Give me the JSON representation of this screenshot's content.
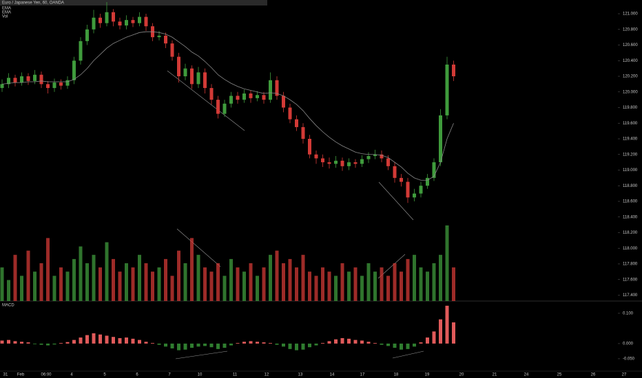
{
  "chart_data": {
    "type": "candlestick",
    "title": "Euro / Japanese Yen, 60, OANDA",
    "indicator_labels": [
      "EMA",
      "EMA",
      "Vol"
    ],
    "macd_label": "MACD",
    "up_color": "#3f9b3c",
    "down_color": "#d23a36",
    "ema_color": "#8a8a8a",
    "categories": [
      "31",
      "Feb",
      "06:00",
      "4",
      "5",
      "6",
      "7",
      "10",
      "11",
      "12",
      "13",
      "14",
      "17",
      "18",
      "19",
      "20",
      "21",
      "24",
      "25",
      "26",
      "27"
    ],
    "ylim": [
      117.325,
      121.176
    ],
    "yticks": [
      {
        "value": 121.0,
        "label": "121.000"
      },
      {
        "value": 120.8,
        "label": "120.800"
      },
      {
        "value": 120.6,
        "label": "120.600"
      },
      {
        "value": 120.4,
        "label": "120.400"
      },
      {
        "value": 120.2,
        "label": "120.200"
      },
      {
        "value": 120.0,
        "label": "120.000"
      },
      {
        "value": 119.8,
        "label": "119.800"
      },
      {
        "value": 119.6,
        "label": "119.600"
      },
      {
        "value": 119.4,
        "label": "119.400"
      },
      {
        "value": 119.2,
        "label": "119.200"
      },
      {
        "value": 119.0,
        "label": "119.000"
      },
      {
        "value": 118.8,
        "label": "118.800"
      },
      {
        "value": 118.6,
        "label": "118.600"
      },
      {
        "value": 118.4,
        "label": "118.400"
      },
      {
        "value": 118.2,
        "label": "118.200"
      },
      {
        "value": 118.0,
        "label": "118.000"
      },
      {
        "value": 117.8,
        "label": "117.800"
      },
      {
        "value": 117.6,
        "label": "117.600"
      },
      {
        "value": 117.4,
        "label": "117.400"
      }
    ],
    "open": [
      120.05,
      120.1,
      120.18,
      120.12,
      120.2,
      120.14,
      120.22,
      120.1,
      120.05,
      120.12,
      120.08,
      120.15,
      120.4,
      120.65,
      120.8,
      120.95,
      120.88,
      121.02,
      120.9,
      120.85,
      120.92,
      120.88,
      120.96,
      120.84,
      120.7,
      120.72,
      120.62,
      120.45,
      120.2,
      120.3,
      120.1,
      120.25,
      120.05,
      119.9,
      119.72,
      119.85,
      119.95,
      119.9,
      119.98,
      119.92,
      119.96,
      119.9,
      120.15,
      119.95,
      119.8,
      119.65,
      119.55,
      119.4,
      119.2,
      119.15,
      119.1,
      119.08,
      119.12,
      119.05,
      119.1,
      119.08,
      119.14,
      119.18,
      119.2,
      119.15,
      119.05,
      118.9,
      118.85,
      118.65,
      118.7,
      118.8,
      118.9,
      119.1,
      119.7,
      120.35
    ],
    "high": [
      120.16,
      120.24,
      120.22,
      120.25,
      120.24,
      120.28,
      120.26,
      120.14,
      120.17,
      120.16,
      120.2,
      120.45,
      120.7,
      120.86,
      121.05,
      121.0,
      121.15,
      121.06,
      120.95,
      120.98,
      120.96,
      121.02,
      121.0,
      120.88,
      120.78,
      120.76,
      120.66,
      120.5,
      120.36,
      120.34,
      120.32,
      120.3,
      120.1,
      119.95,
      119.9,
      120.0,
      120.0,
      120.03,
      120.02,
      120.01,
      120.0,
      120.25,
      120.2,
      120.0,
      119.85,
      119.7,
      119.6,
      119.45,
      119.25,
      119.2,
      119.16,
      119.18,
      119.16,
      119.15,
      119.14,
      119.19,
      119.23,
      119.26,
      119.25,
      119.19,
      119.1,
      118.95,
      118.9,
      118.76,
      118.85,
      118.95,
      119.15,
      119.78,
      120.45,
      120.4
    ],
    "low": [
      120.0,
      120.05,
      120.07,
      120.08,
      120.09,
      120.1,
      120.05,
      119.98,
      120.0,
      120.03,
      120.04,
      120.1,
      120.35,
      120.6,
      120.75,
      120.82,
      120.84,
      120.84,
      120.8,
      120.8,
      120.83,
      120.84,
      120.78,
      120.65,
      120.66,
      120.56,
      120.4,
      120.12,
      120.15,
      120.04,
      120.05,
      119.98,
      119.84,
      119.66,
      119.68,
      119.8,
      119.85,
      119.86,
      119.86,
      119.88,
      119.85,
      119.86,
      119.9,
      119.74,
      119.6,
      119.5,
      119.34,
      119.15,
      119.08,
      119.04,
      119.02,
      119.03,
      118.99,
      119.0,
      119.03,
      119.04,
      119.09,
      119.14,
      119.1,
      119.0,
      118.84,
      118.79,
      118.58,
      118.6,
      118.65,
      118.76,
      118.86,
      119.05,
      119.65,
      120.14
    ],
    "close": [
      120.1,
      120.18,
      120.12,
      120.2,
      120.14,
      120.22,
      120.1,
      120.05,
      120.12,
      120.08,
      120.15,
      120.4,
      120.65,
      120.8,
      120.95,
      120.88,
      121.02,
      120.9,
      120.85,
      120.92,
      120.88,
      120.96,
      120.84,
      120.7,
      120.72,
      120.62,
      120.45,
      120.2,
      120.3,
      120.1,
      120.25,
      120.05,
      119.9,
      119.72,
      119.85,
      119.95,
      119.9,
      119.98,
      119.92,
      119.96,
      119.9,
      120.15,
      119.95,
      119.8,
      119.65,
      119.55,
      119.4,
      119.2,
      119.15,
      119.1,
      119.08,
      119.12,
      119.05,
      119.1,
      119.08,
      119.14,
      119.18,
      119.2,
      119.15,
      119.05,
      118.9,
      118.85,
      118.65,
      118.7,
      118.8,
      118.9,
      119.1,
      119.7,
      120.35,
      120.2
    ],
    "ema": [
      120.1,
      120.11,
      120.12,
      120.12,
      120.13,
      120.13,
      120.14,
      120.13,
      120.13,
      120.13,
      120.13,
      120.16,
      120.22,
      120.3,
      120.4,
      120.48,
      120.56,
      120.62,
      120.66,
      120.7,
      120.73,
      120.76,
      120.77,
      120.77,
      120.76,
      120.74,
      120.7,
      120.64,
      120.58,
      120.51,
      120.46,
      120.39,
      120.31,
      120.22,
      120.16,
      120.11,
      120.07,
      120.04,
      120.02,
      120.0,
      119.98,
      119.99,
      119.98,
      119.95,
      119.9,
      119.84,
      119.76,
      119.66,
      119.57,
      119.49,
      119.42,
      119.36,
      119.31,
      119.27,
      119.23,
      119.21,
      119.2,
      119.2,
      119.19,
      119.16,
      119.1,
      119.04,
      118.96,
      118.9,
      118.87,
      118.87,
      118.92,
      119.1,
      119.4,
      119.6
    ],
    "volume": [
      40,
      25,
      55,
      30,
      60,
      35,
      45,
      75,
      30,
      40,
      35,
      50,
      65,
      45,
      55,
      40,
      70,
      50,
      35,
      45,
      40,
      55,
      45,
      35,
      40,
      50,
      30,
      60,
      45,
      75,
      55,
      40,
      35,
      45,
      30,
      50,
      40,
      35,
      45,
      30,
      40,
      55,
      60,
      45,
      50,
      40,
      55,
      35,
      30,
      40,
      35,
      30,
      45,
      35,
      40,
      30,
      45,
      35,
      40,
      30,
      45,
      35,
      50,
      55,
      40,
      35,
      45,
      55,
      90,
      40
    ],
    "macd": [
      0.01,
      0.012,
      0.008,
      0.006,
      0.004,
      -0.002,
      -0.004,
      -0.006,
      -0.003,
      0.002,
      0.005,
      0.012,
      0.02,
      0.028,
      0.034,
      0.03,
      0.026,
      0.022,
      0.018,
      0.02,
      0.016,
      0.012,
      0.006,
      0.002,
      -0.004,
      -0.01,
      -0.016,
      -0.022,
      -0.02,
      -0.014,
      -0.01,
      -0.008,
      -0.012,
      -0.018,
      -0.014,
      -0.006,
      0.002,
      0.006,
      0.008,
      0.006,
      0.004,
      0.002,
      -0.004,
      -0.01,
      -0.018,
      -0.022,
      -0.02,
      -0.012,
      -0.006,
      0.002,
      0.008,
      0.014,
      0.018,
      0.016,
      0.012,
      0.01,
      0.006,
      0.002,
      -0.004,
      -0.008,
      -0.014,
      -0.02,
      -0.018,
      -0.01,
      0.004,
      0.02,
      0.04,
      0.08,
      0.125,
      0.07
    ],
    "macd_pos_color": "#e05a5a",
    "macd_neg_color": "#2f7d2f",
    "y2lim": [
      -0.091,
      0.136
    ],
    "y2ticks": [
      {
        "value": 0.1,
        "label": "0.100"
      },
      {
        "value": 0,
        "label": "0.000"
      },
      {
        "value": -0.05,
        "label": "-0.050"
      }
    ]
  }
}
